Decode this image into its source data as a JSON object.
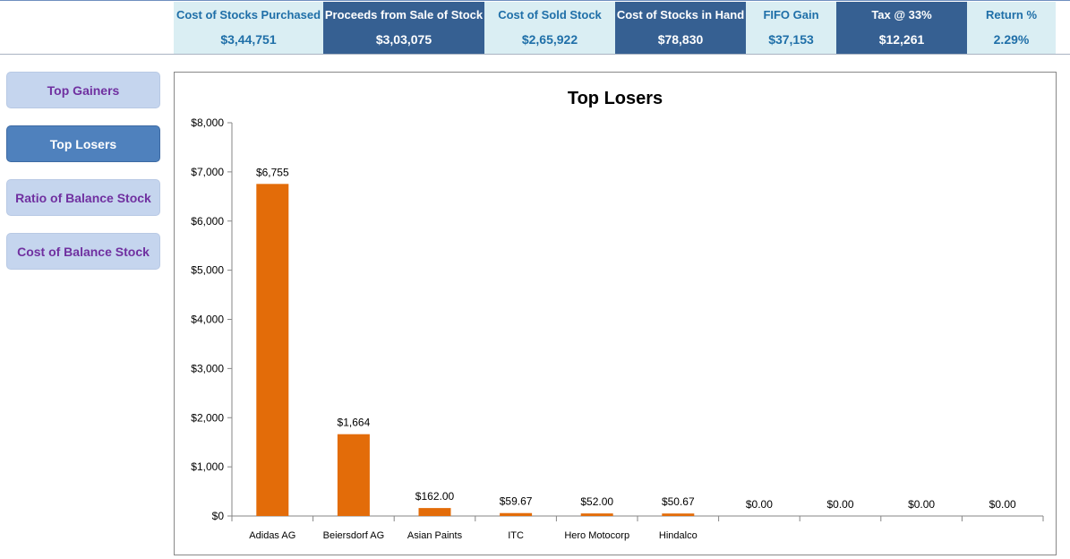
{
  "kpis": [
    {
      "label": "Cost of Stocks Purchased",
      "value": "$3,44,751",
      "style": "light"
    },
    {
      "label": "Proceeds from Sale of Stock",
      "value": "$3,03,075",
      "style": "dark"
    },
    {
      "label": "Cost of Sold Stock",
      "value": "$2,65,922",
      "style": "light"
    },
    {
      "label": "Cost of Stocks in Hand",
      "value": "$78,830",
      "style": "dark"
    },
    {
      "label": "FIFO Gain",
      "value": "$37,153",
      "style": "light"
    },
    {
      "label": "Tax @ 33%",
      "value": "$12,261",
      "style": "dark"
    },
    {
      "label": "Return %",
      "value": "2.29%",
      "style": "light"
    }
  ],
  "nav": {
    "top_gainers": "Top Gainers",
    "top_losers": "Top Losers",
    "ratio_balance": "Ratio of Balance Stock",
    "cost_balance": "Cost of Balance Stock",
    "active": "top_losers"
  },
  "colors": {
    "bar": "#e36c09",
    "kpi_light_bg": "#daeef3",
    "kpi_dark_bg": "#366092",
    "nav_active_bg": "#4f81bd",
    "nav_inactive_bg": "#c5d5ee",
    "nav_inactive_text": "#7030a0"
  },
  "chart_data": {
    "type": "bar",
    "title": "Top Losers",
    "xlabel": "",
    "ylabel": "",
    "ylim": [
      0,
      8000
    ],
    "yticks": [
      0,
      1000,
      2000,
      3000,
      4000,
      5000,
      6000,
      7000,
      8000
    ],
    "ytick_labels": [
      "$0",
      "$1,000",
      "$2,000",
      "$3,000",
      "$4,000",
      "$5,000",
      "$6,000",
      "$7,000",
      "$8,000"
    ],
    "categories": [
      "Adidas AG",
      "Beiersdorf AG",
      "Asian Paints",
      "ITC",
      "Hero Motocorp",
      "Hindalco",
      "",
      "",
      "",
      ""
    ],
    "values": [
      6755,
      1664,
      162.0,
      59.67,
      52.0,
      50.67,
      0,
      0,
      0,
      0
    ],
    "data_labels": [
      "$6,755",
      "$1,664",
      "$162.00",
      "$59.67",
      "$52.00",
      "$50.67",
      "$0.00",
      "$0.00",
      "$0.00",
      "$0.00"
    ],
    "grid": false,
    "legend": "none"
  }
}
